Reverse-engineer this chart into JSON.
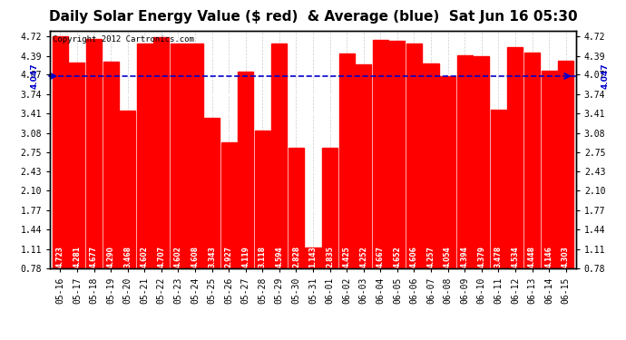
{
  "title": "Daily Solar Energy Value ($ red)  & Average (blue)  Sat Jun 16 05:30",
  "categories": [
    "05-16",
    "05-17",
    "05-18",
    "05-19",
    "05-20",
    "05-21",
    "05-22",
    "05-23",
    "05-24",
    "05-25",
    "05-26",
    "05-27",
    "05-28",
    "05-29",
    "05-30",
    "05-31",
    "06-01",
    "06-02",
    "06-03",
    "06-04",
    "06-05",
    "06-06",
    "06-07",
    "06-08",
    "06-09",
    "06-10",
    "06-11",
    "06-12",
    "06-13",
    "06-14",
    "06-15"
  ],
  "values": [
    4.723,
    4.281,
    4.677,
    4.29,
    3.468,
    4.602,
    4.707,
    4.602,
    4.608,
    3.343,
    2.927,
    4.119,
    3.118,
    4.594,
    2.828,
    1.143,
    2.835,
    4.425,
    4.252,
    4.667,
    4.652,
    4.606,
    4.257,
    4.054,
    4.394,
    4.379,
    3.478,
    4.534,
    4.448,
    4.146,
    4.303
  ],
  "average": 4.047,
  "bar_color": "#ff0000",
  "avg_color": "#0000cc",
  "background_color": "#ffffff",
  "plot_bg_color": "#ffffff",
  "yticks": [
    0.78,
    1.11,
    1.44,
    1.77,
    2.1,
    2.43,
    2.75,
    3.08,
    3.41,
    3.74,
    4.07,
    4.39,
    4.72
  ],
  "copyright_text": "Copyright 2012 Cartronics.com",
  "avg_label": "4.047",
  "ymin": 0.78,
  "ymax": 4.82,
  "title_fontsize": 11,
  "tick_fontsize": 7,
  "label_fontsize": 5.5,
  "copyright_fontsize": 6.5
}
